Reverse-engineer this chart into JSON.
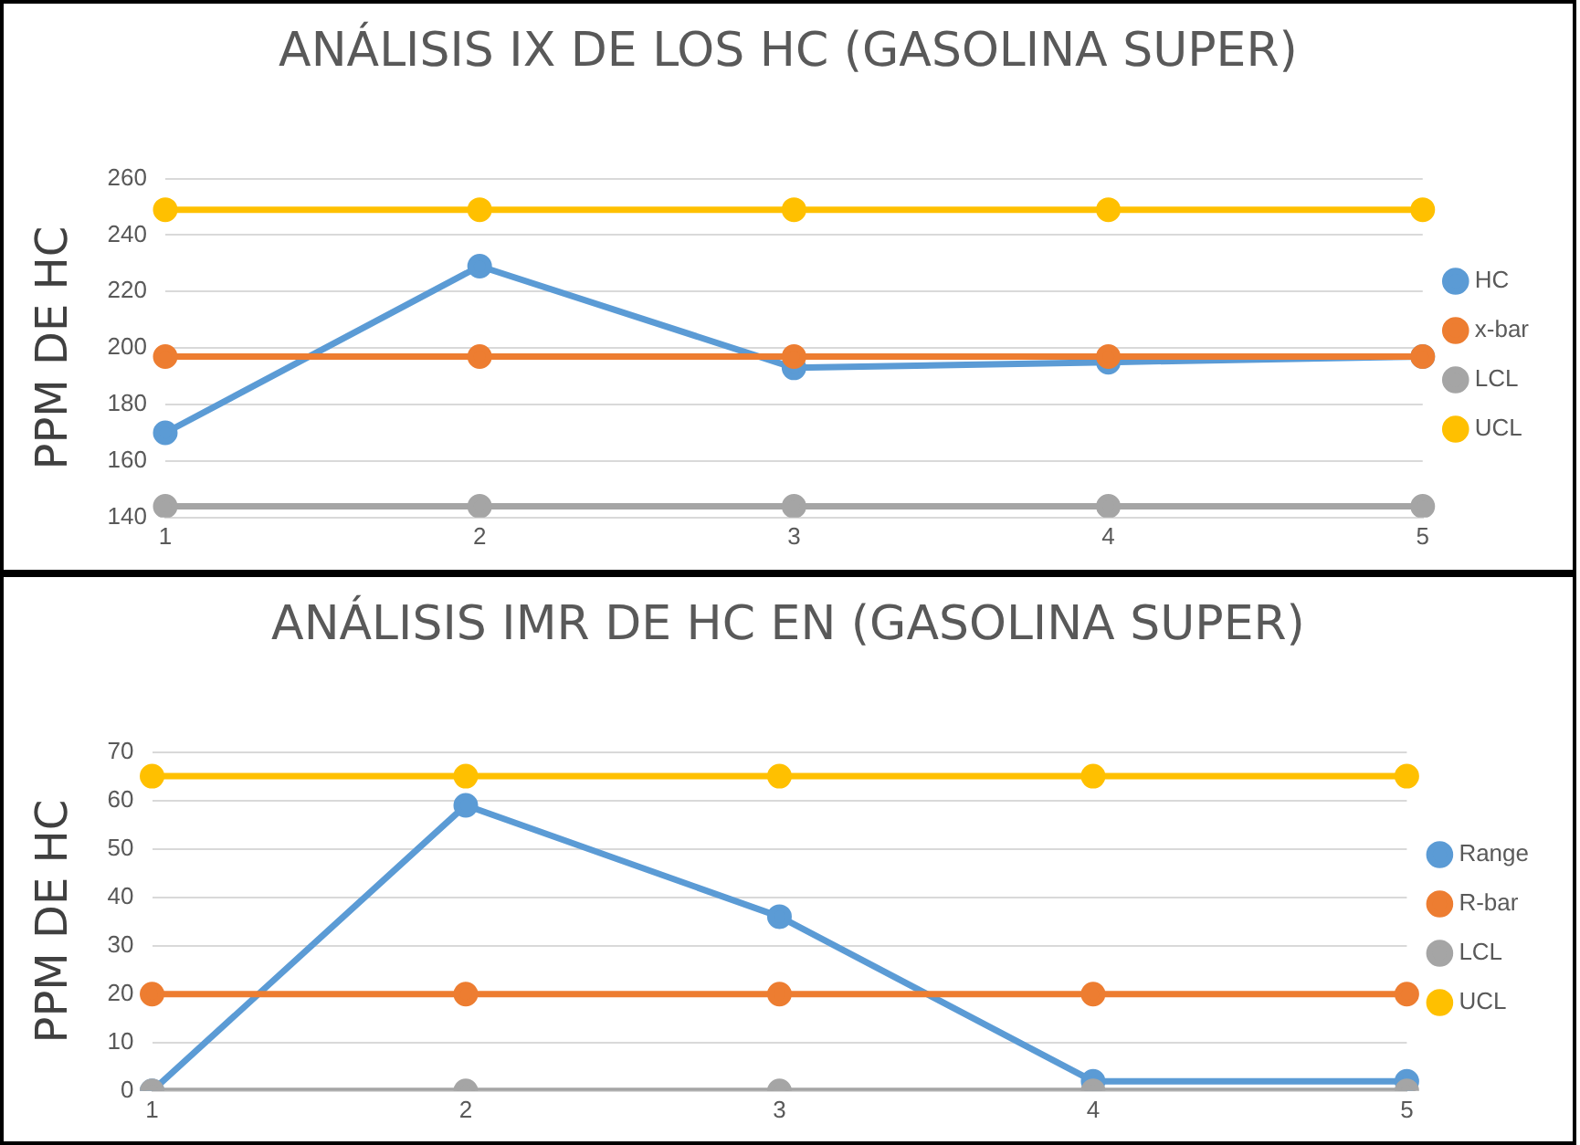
{
  "chart_data": [
    {
      "type": "line",
      "title": "ANÁLISIS IX DE LOS HC (GASOLINA SUPER)",
      "ylabel": "PPM DE HC",
      "categories": [
        "1",
        "2",
        "3",
        "4",
        "5"
      ],
      "ylim": [
        140,
        260
      ],
      "yticks": [
        140,
        160,
        180,
        200,
        220,
        240,
        260
      ],
      "grid": "y",
      "legend": "right",
      "marker": "circle",
      "series": [
        {
          "name": "HC",
          "color": "#5b9bd5",
          "values": [
            170,
            229,
            193,
            195,
            197
          ]
        },
        {
          "name": "x-bar",
          "color": "#ed7d31",
          "values": [
            197,
            197,
            197,
            197,
            197
          ]
        },
        {
          "name": "LCL",
          "color": "#a5a5a5",
          "values": [
            144,
            144,
            144,
            144,
            144
          ]
        },
        {
          "name": "UCL",
          "color": "#ffc000",
          "values": [
            249,
            249,
            249,
            249,
            249
          ]
        }
      ]
    },
    {
      "type": "line",
      "title": "ANÁLISIS IMR DE HC EN (GASOLINA SUPER)",
      "ylabel": "PPM DE HC",
      "categories": [
        "1",
        "2",
        "3",
        "4",
        "5"
      ],
      "ylim": [
        0,
        70
      ],
      "yticks": [
        0,
        10,
        20,
        30,
        40,
        50,
        60,
        70
      ],
      "grid": "y",
      "legend": "right",
      "marker": "circle",
      "series": [
        {
          "name": "Range",
          "color": "#5b9bd5",
          "values": [
            0,
            59,
            36,
            2,
            2
          ]
        },
        {
          "name": "R-bar",
          "color": "#ed7d31",
          "values": [
            20,
            20,
            20,
            20,
            20
          ]
        },
        {
          "name": "LCL",
          "color": "#a5a5a5",
          "values": [
            0,
            0,
            0,
            0,
            0
          ]
        },
        {
          "name": "UCL",
          "color": "#ffc000",
          "values": [
            65,
            65,
            65,
            65,
            65
          ]
        }
      ]
    }
  ]
}
